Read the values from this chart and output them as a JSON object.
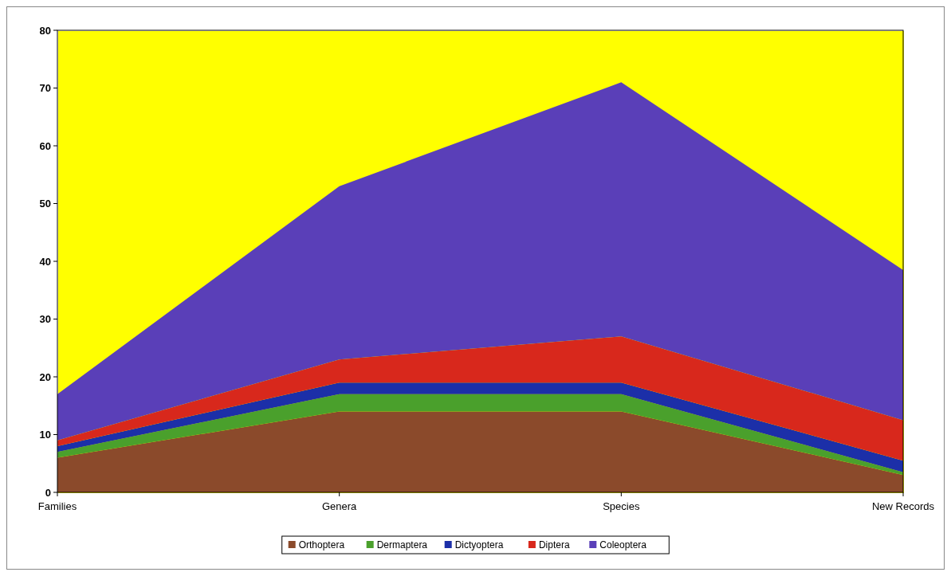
{
  "chart_data": {
    "type": "area",
    "stacked": true,
    "categories": [
      "Families",
      "Genera",
      "Species",
      "New Records"
    ],
    "series": [
      {
        "name": "Orthoptera",
        "color": "#8b4a2b",
        "values": [
          6,
          14,
          14,
          3
        ]
      },
      {
        "name": "Dermaptera",
        "color": "#4aa02c",
        "values": [
          1,
          3,
          3,
          0.5
        ]
      },
      {
        "name": "Dictyoptera",
        "color": "#1c2fa8",
        "values": [
          1,
          2,
          2,
          2
        ]
      },
      {
        "name": "Diptera",
        "color": "#d8281c",
        "values": [
          1,
          4,
          8,
          7
        ]
      },
      {
        "name": "Coleoptera",
        "color": "#5a3fb8",
        "values": [
          8,
          30,
          44,
          26
        ]
      }
    ],
    "ylim": [
      0,
      80
    ],
    "yticks": [
      0,
      10,
      20,
      30,
      40,
      50,
      60,
      70,
      80
    ],
    "grid": false,
    "legend": "bottom"
  }
}
